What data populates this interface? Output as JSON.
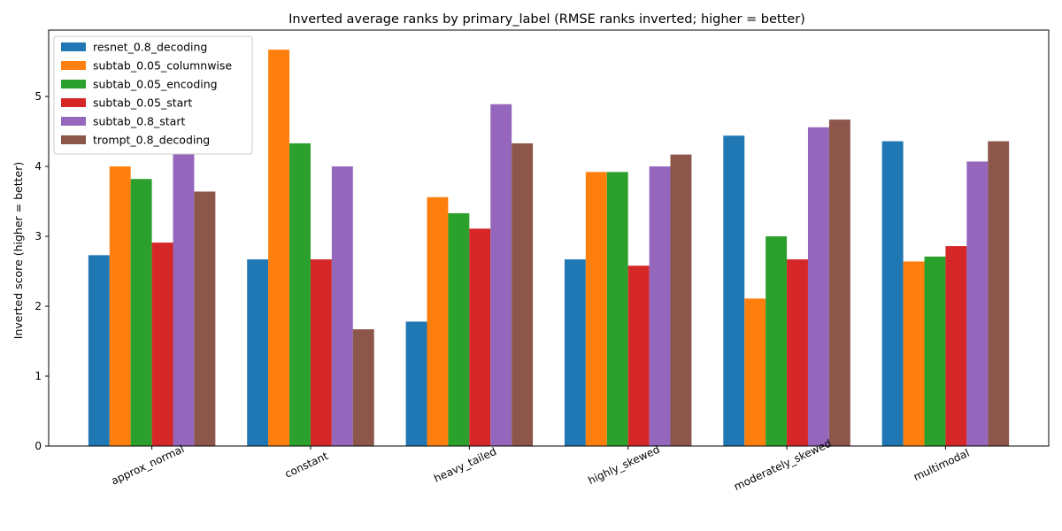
{
  "chart_data": {
    "type": "bar",
    "title": "Inverted average ranks by primary_label (RMSE ranks inverted; higher = better)",
    "xlabel": "",
    "ylabel": "Inverted score (higher = better)",
    "ylim": [
      0,
      5.95
    ],
    "yticks": [
      0,
      1,
      2,
      3,
      4,
      5
    ],
    "grid": false,
    "legend_position": "top-left",
    "categories": [
      "approx_normal",
      "constant",
      "heavy_tailed",
      "highly_skewed",
      "moderately_skewed",
      "multimodal"
    ],
    "series": [
      {
        "name": "resnet_0.8_decoding",
        "color": "#1f77b4",
        "values": [
          2.73,
          2.67,
          1.78,
          2.67,
          4.44,
          4.36
        ]
      },
      {
        "name": "subtab_0.05_columnwise",
        "color": "#ff7f0e",
        "values": [
          4.0,
          5.67,
          3.56,
          3.92,
          2.11,
          2.64
        ]
      },
      {
        "name": "subtab_0.05_encoding",
        "color": "#2ca02c",
        "values": [
          3.82,
          4.33,
          3.33,
          3.92,
          3.0,
          2.71
        ]
      },
      {
        "name": "subtab_0.05_start",
        "color": "#d62728",
        "values": [
          2.91,
          2.67,
          3.11,
          2.58,
          2.67,
          2.86
        ]
      },
      {
        "name": "subtab_0.8_start",
        "color": "#9467bd",
        "values": [
          4.18,
          4.0,
          4.89,
          4.0,
          4.56,
          4.07
        ]
      },
      {
        "name": "trompt_0.8_decoding",
        "color": "#8c564b",
        "values": [
          3.64,
          1.67,
          4.33,
          4.17,
          4.67,
          4.36
        ]
      }
    ]
  }
}
